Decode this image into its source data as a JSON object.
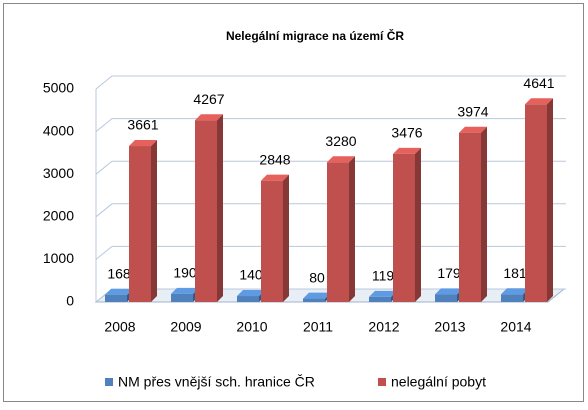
{
  "chart_data": {
    "type": "bar3d",
    "title": "Nelegální migrace na území ČR",
    "categories": [
      "2008",
      "2009",
      "2010",
      "2011",
      "2012",
      "2013",
      "2014"
    ],
    "series": [
      {
        "name": "NM přes vnější sch. hranice ČR",
        "color": "#4f81bd",
        "values": [
          168,
          190,
          140,
          80,
          119,
          179,
          181
        ]
      },
      {
        "name": "nelegální pobyt",
        "color": "#c0504d",
        "values": [
          3661,
          4267,
          2848,
          3280,
          3476,
          3974,
          4641
        ]
      }
    ],
    "ylim": [
      0,
      5000
    ],
    "yticks": [
      0,
      1000,
      2000,
      3000,
      4000,
      5000
    ],
    "grid": true,
    "legend": "bottom"
  }
}
